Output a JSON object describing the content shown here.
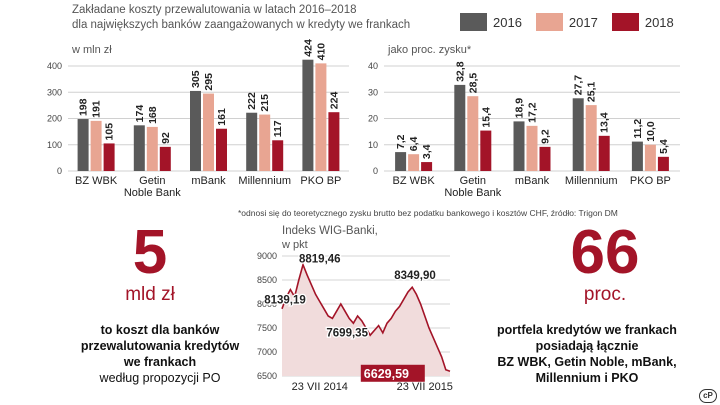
{
  "header": {
    "title_line1": "Zakładane koszty przewalutowania w latach 2016–2018",
    "title_line2": "dla największych banków zaangażowanych w kredyty we frankach"
  },
  "colors": {
    "2016": "#5a5a5a",
    "2017": "#e8a592",
    "2018": "#a31428",
    "accent": "#a31428"
  },
  "chart_data": [
    {
      "type": "bar",
      "unit_label": "w mln zł",
      "categories": [
        "BZ WBK",
        "Getin Noble Bank",
        "mBank",
        "Millennium",
        "PKO BP"
      ],
      "category_lines": [
        [
          "BZ WBK"
        ],
        [
          "Getin",
          "Noble Bank"
        ],
        [
          "mBank"
        ],
        [
          "Millennium"
        ],
        [
          "PKO BP"
        ]
      ],
      "series": [
        {
          "name": "2016",
          "values": [
            198,
            174,
            305,
            222,
            424
          ],
          "labels": [
            "198",
            "174",
            "305",
            "222",
            "424"
          ]
        },
        {
          "name": "2017",
          "values": [
            191,
            168,
            295,
            215,
            410
          ],
          "labels": [
            "191",
            "168",
            "295",
            "215",
            "410"
          ]
        },
        {
          "name": "2018",
          "values": [
            105,
            92,
            161,
            117,
            224
          ],
          "labels": [
            "105",
            "92",
            "161",
            "117",
            "224"
          ]
        }
      ],
      "ylim": [
        0,
        400
      ],
      "yticks": [
        0,
        100,
        200,
        300,
        400
      ],
      "grid": true
    },
    {
      "type": "bar",
      "unit_label": "jako proc. zysku*",
      "categories": [
        "BZ WBK",
        "Getin Noble Bank",
        "mBank",
        "Millennium",
        "PKO BP"
      ],
      "category_lines": [
        [
          "BZ WBK"
        ],
        [
          "Getin",
          "Noble Bank"
        ],
        [
          "mBank"
        ],
        [
          "Millennium"
        ],
        [
          "PKO BP"
        ]
      ],
      "series": [
        {
          "name": "2016",
          "values": [
            7.2,
            32.8,
            18.9,
            27.7,
            11.2
          ],
          "labels": [
            "7,2",
            "32,8",
            "18,9",
            "27,7",
            "11,2"
          ]
        },
        {
          "name": "2017",
          "values": [
            6.4,
            28.5,
            17.2,
            25.1,
            10.0
          ],
          "labels": [
            "6,4",
            "28,5",
            "17,2",
            "25,1",
            "10,0"
          ]
        },
        {
          "name": "2018",
          "values": [
            3.4,
            15.4,
            9.2,
            13.4,
            5.4
          ],
          "labels": [
            "3,4",
            "15,4",
            "9,2",
            "13,4",
            "5,4"
          ]
        }
      ],
      "ylim": [
        0,
        40
      ],
      "yticks": [
        0,
        10,
        20,
        30,
        40
      ],
      "grid": true
    },
    {
      "type": "line",
      "title": "Indeks WIG-Banki,",
      "unit_label": "w pkt",
      "x_ticks": [
        "23 VII 2014",
        "23 VII 2015"
      ],
      "ylim": [
        6500,
        9000
      ],
      "yticks": [
        6500,
        7000,
        7500,
        8000,
        8500,
        9000
      ],
      "y": [
        7900,
        8139.19,
        8300,
        8150,
        8500,
        8819.46,
        8600,
        8400,
        8200,
        8050,
        7900,
        7750,
        7699.35,
        7850,
        8000,
        7850,
        7700,
        7600,
        7750,
        7650,
        7500,
        7350,
        7450,
        7550,
        7400,
        7600,
        7700,
        7850,
        7950,
        8100,
        8250,
        8349.9,
        8200,
        8000,
        7750,
        7500,
        7300,
        7100,
        6900,
        6629.59,
        6600
      ],
      "annotations": [
        {
          "label": "8139,19",
          "index": 1
        },
        {
          "label": "8819,46",
          "index": 5
        },
        {
          "label": "7699,35",
          "index": 12
        },
        {
          "label": "8349,90",
          "index": 31
        },
        {
          "label": "6629,59",
          "index": 39,
          "highlight": true
        }
      ],
      "grid": true
    }
  ],
  "stats": {
    "left": {
      "number": "5",
      "unit": "mld zł",
      "desc_bold": [
        "to koszt dla banków",
        "przewalutowania kredytów",
        "we frankach"
      ],
      "desc_normal": "według propozycji PO"
    },
    "right": {
      "number": "66",
      "unit": "proc.",
      "desc_bold": [
        "portfela kredytów we frankach",
        "posiadają łącznie"
      ],
      "desc_normal": [
        "BZ WBK, Getin Noble, mBank,",
        "Millennium i PKO"
      ]
    }
  },
  "footnote": "*odnosi się do teoretycznego zysku brutto bez podatku bankowego i kosztów CHF, źródło: Trigon DM",
  "logo": "cP"
}
